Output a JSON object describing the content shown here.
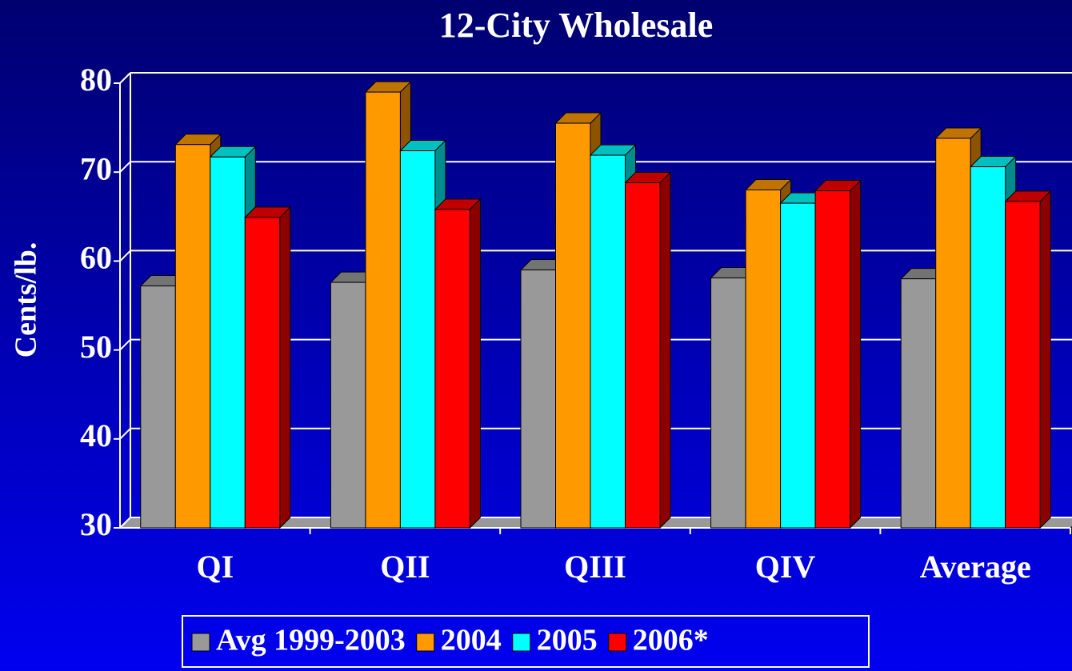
{
  "chart_data": {
    "type": "bar3d",
    "title": "12-City Wholesale",
    "y_label": "Cents/lb.",
    "categories": [
      "QI",
      "QII",
      "QIII",
      "QIV",
      "Average"
    ],
    "series": [
      {
        "name": "Avg 1999-2003",
        "color": "#999999",
        "values": [
          57.2,
          57.6,
          59.0,
          58.1,
          58.0
        ]
      },
      {
        "name": "2004",
        "color": "#ff9900",
        "values": [
          73.1,
          79.0,
          75.5,
          68.0,
          73.8
        ]
      },
      {
        "name": "2005",
        "color": "#00ffff",
        "values": [
          71.7,
          72.4,
          71.9,
          66.5,
          70.6
        ]
      },
      {
        "name": "2006*",
        "color": "#ff0000",
        "values": [
          64.9,
          65.8,
          68.8,
          67.9,
          66.7
        ]
      }
    ],
    "ylim": [
      30,
      80
    ],
    "yticks": [
      30,
      40,
      50,
      60,
      70,
      80
    ],
    "grid": true
  }
}
